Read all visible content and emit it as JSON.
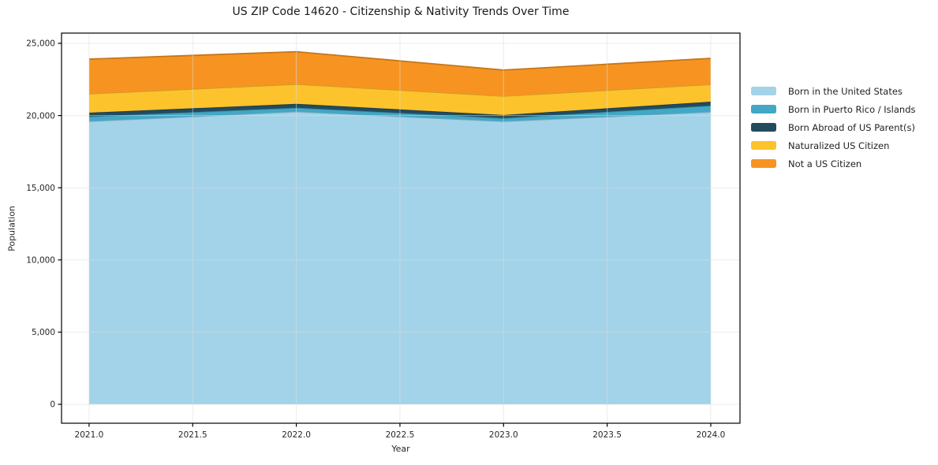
{
  "chart_data": {
    "type": "area",
    "stacked": true,
    "title": "US ZIP Code 14620 - Citizenship & Nativity Trends Over Time",
    "xlabel": "Year",
    "ylabel": "Population",
    "x": [
      2021,
      2022,
      2023,
      2024
    ],
    "series": [
      {
        "name": "Born in the United States",
        "color": "#a3d3e8",
        "values": [
          19600,
          20270,
          19600,
          20250
        ]
      },
      {
        "name": "Born in Puerto Rico / Islands",
        "color": "#41a8c6",
        "values": [
          330,
          270,
          220,
          440
        ]
      },
      {
        "name": "Born Abroad of US Parent(s)",
        "color": "#234b5e",
        "values": [
          270,
          270,
          220,
          270
        ]
      },
      {
        "name": "Naturalized US Citizen",
        "color": "#fcc32d",
        "values": [
          1310,
          1370,
          1310,
          1200
        ]
      },
      {
        "name": "Not a US Citizen",
        "color": "#f79421",
        "values": [
          2400,
          2240,
          1800,
          1800
        ]
      }
    ],
    "xticks": {
      "values": [
        2021.0,
        2021.5,
        2022.0,
        2022.5,
        2023.0,
        2023.5,
        2024.0
      ],
      "labels": [
        "2021.0",
        "2021.5",
        "2022.0",
        "2022.5",
        "2023.0",
        "2023.5",
        "2024.0"
      ]
    },
    "yticks": {
      "values": [
        0,
        5000,
        10000,
        15000,
        20000,
        25000
      ],
      "labels": [
        "0",
        "5,000",
        "10,000",
        "15,000",
        "20,000",
        "25,000"
      ]
    },
    "xlim": [
      2020.867,
      2024.141
    ],
    "ylim": [
      -1310,
      25710
    ],
    "grid": true,
    "legend_position": "center-right",
    "frame_color": "#000000",
    "grid_color": "#dcdcdc",
    "tick_label_color": "#262626"
  }
}
